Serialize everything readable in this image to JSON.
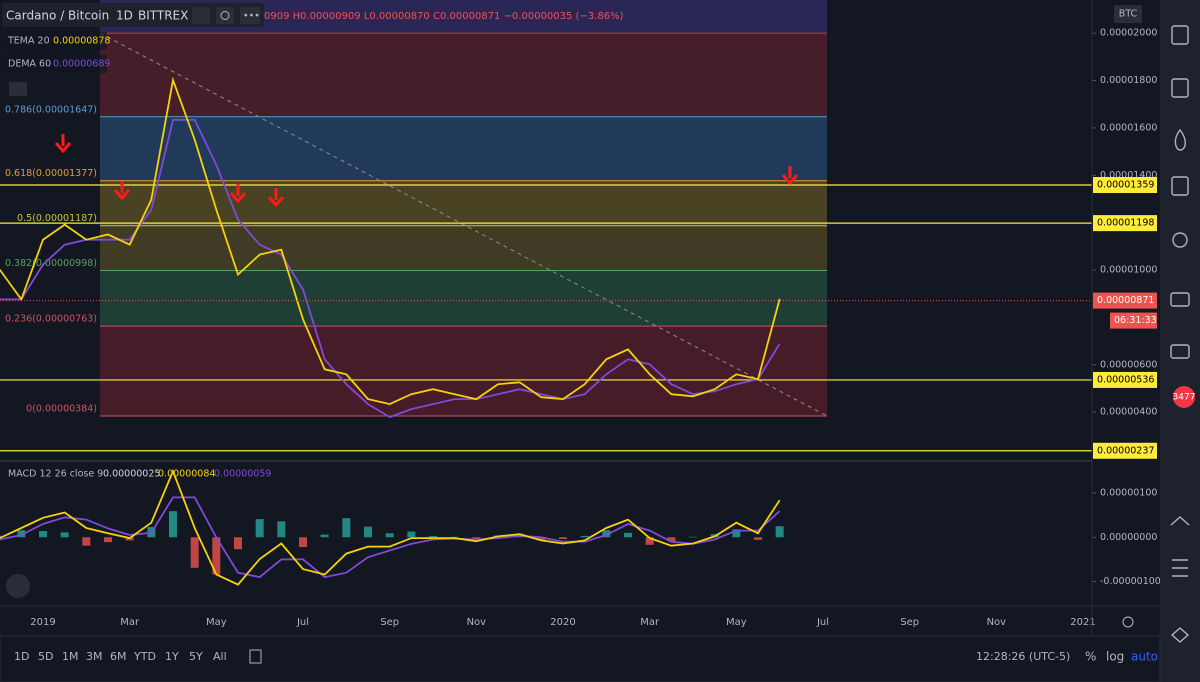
{
  "header": {
    "symbol": "Cardano / Bitcoin",
    "interval": "1D",
    "exchange": "BITTREX",
    "ohlc": "0909 H0.00000909 L0.00000870 C0.00000871 −0.00000035 (−3.86%)"
  },
  "currency_badge": "BTC",
  "notification_badge": "3477",
  "bottom_bar": {
    "ranges": [
      "1D",
      "5D",
      "1M",
      "3M",
      "6M",
      "YTD",
      "1Y",
      "5Y",
      "All"
    ],
    "clock": "12:28:26 (UTC-5)",
    "percent": "%",
    "log": "log",
    "auto": "auto"
  },
  "chart_data": [
    {
      "type": "line",
      "categories": [
        null,
        null,
        "2019",
        null,
        null,
        null,
        "Mar",
        null,
        null,
        null,
        "May",
        null,
        null,
        null,
        "Jul",
        null,
        null,
        null,
        "Sep",
        null,
        null,
        null,
        "Nov",
        null,
        null,
        null,
        "2020",
        null,
        null,
        null,
        "Mar",
        null,
        null,
        null,
        "May",
        null,
        null,
        null,
        "Jul",
        null,
        null,
        null,
        "Sep",
        null,
        null,
        null,
        "Nov",
        null,
        null,
        null,
        "2021"
      ],
      "series": [
        {
          "name": "TEMA 20",
          "color": "#f5d20a",
          "legend_value": {
            "value": 8.78e-06,
            "label": "0.00000878"
          },
          "values": [
            1.002e-05,
            8.76e-06,
            1.128e-05,
            1.192e-05,
            1.128e-05,
            1.15e-05,
            1.107e-05,
            1.297e-05,
            1.802e-05,
            1.55e-05,
            1.255e-05,
            9.81e-06,
            1.065e-05,
            1.086e-05,
            7.92e-06,
            5.81e-06,
            5.6e-06,
            4.55e-06,
            4.34e-06,
            4.76e-06,
            4.97e-06,
            4.76e-06,
            4.55e-06,
            5.18e-06,
            5.26e-06,
            4.63e-06,
            4.55e-06,
            5.18e-06,
            6.23e-06,
            6.65e-06,
            5.6e-06,
            4.76e-06,
            4.67e-06,
            4.97e-06,
            5.6e-06,
            5.39e-06,
            8.78e-06,
            null,
            null,
            null,
            null,
            null,
            null,
            null,
            null,
            null,
            null,
            null,
            null,
            null,
            null
          ]
        },
        {
          "name": "DEMA 60",
          "color": "#7e4bd8",
          "legend_value": {
            "value": 6.89e-06,
            "label": "0.00000689"
          },
          "values": [
            8.76e-06,
            8.76e-06,
            1.023e-05,
            1.107e-05,
            1.128e-05,
            1.128e-05,
            1.128e-05,
            1.255e-05,
            1.634e-05,
            1.634e-05,
            1.444e-05,
            1.213e-05,
            1.107e-05,
            1.065e-05,
            9.18e-06,
            6.23e-06,
            5.18e-06,
            4.34e-06,
            3.79e-06,
            4.13e-06,
            4.34e-06,
            4.55e-06,
            4.55e-06,
            4.76e-06,
            4.97e-06,
            4.76e-06,
            4.55e-06,
            4.76e-06,
            5.6e-06,
            6.23e-06,
            6.02e-06,
            5.18e-06,
            4.76e-06,
            4.88e-06,
            5.18e-06,
            5.39e-06,
            6.89e-06,
            null,
            null,
            null,
            null,
            null,
            null,
            null,
            null,
            null,
            null,
            null,
            null,
            null,
            null
          ]
        }
      ],
      "ylim": [
        1.98e-06,
        2.14e-05
      ],
      "yticks": [
        {
          "value": 2e-05,
          "label": "0.00002000"
        },
        {
          "value": 1.8e-05,
          "label": "0.00001800"
        },
        {
          "value": 1.6e-05,
          "label": "0.00001600"
        },
        {
          "value": 1.4e-05,
          "label": "0.00001400"
        },
        {
          "value": 1e-05,
          "label": "0.00001000"
        },
        {
          "value": 6e-06,
          "label": "0.00000600"
        },
        {
          "value": 4e-06,
          "label": "0.00000400"
        }
      ],
      "fib_extension_color": "rgba(72,58,150,0.45)",
      "fib_levels": [
        {
          "value": 2e-05,
          "color": "#b0404f",
          "fill": "rgba(112,36,48,0.55)"
        },
        {
          "value": 1.647e-05,
          "label": "0.786(0.00001647)",
          "color": "#5b9bd5",
          "fill": "rgba(44,82,128,0.6)"
        },
        {
          "value": 1.377e-05,
          "label": "0.618(0.00001377)",
          "color": "#e0a030",
          "fill": "rgba(112,96,36,0.6)"
        },
        {
          "value": 1.187e-05,
          "label": "0.5(0.00001187)",
          "color": "#c8c040",
          "fill": "rgba(100,90,38,0.55)"
        },
        {
          "value": 9.98e-06,
          "label": "0.382(0.00000998)",
          "color": "#5aa060",
          "fill": "rgba(40,88,66,0.6)"
        },
        {
          "value": 7.63e-06,
          "label": "0.236(0.00000763)",
          "color": "#d05060",
          "fill": "rgba(104,32,44,0.6)"
        },
        {
          "value": 3.84e-06,
          "label": "0(0.00000384)",
          "color": "#d05060"
        }
      ],
      "hlines": [
        {
          "value": 1.359e-05,
          "label": "0.00001359"
        },
        {
          "value": 1.198e-05,
          "label": "0.00001198"
        },
        {
          "value": 5.36e-06,
          "label": "0.00000536"
        },
        {
          "value": 2.37e-06,
          "label": "0.00000237"
        }
      ],
      "hline_color": "#ffeb3b",
      "last_price": {
        "value": 8.71e-06,
        "label": "0.00000871"
      },
      "countdown": "06:31:33"
    },
    {
      "type": "macd",
      "title": "MACD 12 26 close 9",
      "histogram": {
        "positive_color": "#26a69a",
        "negative_color": "#ef5350",
        "legend_value": {
          "value": 2.5e-07,
          "label": "0.00000025"
        },
        "values": [
          3e-08,
          1.6e-07,
          1.4e-07,
          1.1e-07,
          -1.9e-07,
          -1.1e-07,
          -7e-08,
          2.3e-07,
          5.9e-07,
          -6.9e-07,
          -8.4e-07,
          -2.7e-07,
          4.1e-07,
          3.6e-07,
          -2.2e-07,
          6e-08,
          4.3e-07,
          2.4e-07,
          9e-08,
          1.3e-07,
          3e-08,
          1e-08,
          -4e-08,
          4e-08,
          4e-08,
          -7e-08,
          -4e-08,
          3e-08,
          1.6e-07,
          1e-07,
          -1.7e-07,
          -9e-08,
          1e-08,
          7e-08,
          1.8e-07,
          -6e-08,
          2.5e-07,
          null,
          null,
          null,
          null,
          null,
          null,
          null,
          null,
          null,
          null,
          null,
          null,
          null,
          null
        ]
      },
      "series": [
        {
          "color": "#f5d20a",
          "legend_value": {
            "value": 8.4e-07,
            "label": "0.00000084"
          },
          "values": [
            -2e-08,
            2.1e-07,
            4.4e-07,
            5.6e-07,
            2.1e-07,
            9e-08,
            -2e-08,
            3.3e-07,
            1.49e-06,
            2.1e-07,
            -8.4e-07,
            -1.07e-06,
            -4.9e-07,
            -1.4e-07,
            -7.2e-07,
            -8.4e-07,
            -3.7e-07,
            -2.1e-07,
            -2.1e-07,
            -2e-08,
            -2e-08,
            -2e-08,
            -9e-08,
            2e-08,
            7e-08,
            -7e-08,
            -1.4e-07,
            -7e-08,
            2.1e-07,
            4e-07,
            -2e-08,
            -1.9e-07,
            -1.4e-07,
            2e-08,
            3.3e-07,
            9e-08,
            8.4e-07,
            null,
            null,
            null,
            null,
            null,
            null,
            null,
            null,
            null,
            null,
            null,
            null,
            null,
            null
          ]
        },
        {
          "color": "#7e4bd8",
          "legend_value": {
            "value": 5.9e-07,
            "label": "0.00000059"
          },
          "values": [
            -5e-08,
            5e-08,
            3e-07,
            4.5e-07,
            4e-07,
            2e-07,
            5e-08,
            1e-07,
            9e-07,
            9e-07,
            0,
            -8e-07,
            -9e-07,
            -5e-07,
            -5e-07,
            -9e-07,
            -8e-07,
            -4.5e-07,
            -3e-07,
            -1.5e-07,
            -5e-08,
            -3e-08,
            -5e-08,
            -2e-08,
            3e-08,
            0,
            -1e-07,
            -1e-07,
            5e-08,
            3e-07,
            1.5e-07,
            -1e-07,
            -1.5e-07,
            -5e-08,
            1.5e-07,
            1.5e-07,
            5.9e-07,
            null,
            null,
            null,
            null,
            null,
            null,
            null,
            null,
            null,
            null,
            null,
            null,
            null,
            null
          ]
        }
      ],
      "ylim": [
        -1.53e-06,
        1.7e-06
      ],
      "yticks": [
        {
          "value": 1e-06,
          "label": "0.00000100"
        },
        {
          "value": 0,
          "label": "0.00000000"
        },
        {
          "value": -1e-06,
          "label": "-0.00000100"
        }
      ]
    }
  ]
}
